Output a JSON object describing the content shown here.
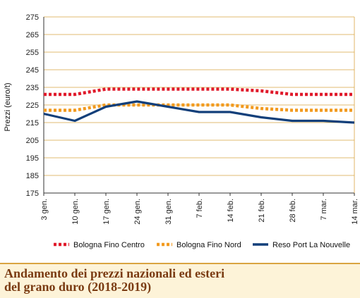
{
  "chart_data": {
    "type": "line",
    "categories": [
      "3 gen.",
      "10 gen.",
      "17 gen.",
      "24 gen.",
      "31 gen.",
      "7 feb.",
      "14 feb.",
      "21 feb.",
      "28 feb.",
      "7 mar.",
      "14 mar."
    ],
    "ylabel": "Prezzi (euro/t)",
    "ylim": [
      175,
      275
    ],
    "yticks": [
      175,
      185,
      195,
      205,
      215,
      225,
      235,
      245,
      255,
      265,
      275
    ],
    "grid": "horizontal",
    "legend_position": "bottom",
    "series": [
      {
        "name": "Bologna Fino Centro",
        "color": "#e01a2b",
        "style": "dotted",
        "values": [
          231,
          231,
          234,
          234,
          234,
          234,
          234,
          233,
          231,
          231,
          231
        ]
      },
      {
        "name": "Bologna Fino Nord",
        "color": "#f29a1f",
        "style": "dotted",
        "values": [
          222,
          222,
          225,
          225,
          225,
          225,
          225,
          223,
          222,
          222,
          222
        ]
      },
      {
        "name": "Reso Port La Nouvelle",
        "color": "#123f7a",
        "style": "solid",
        "values": [
          220,
          216,
          224,
          227,
          224,
          221,
          221,
          218,
          216,
          216,
          215
        ]
      }
    ]
  },
  "caption": {
    "line1": "Andamento dei prezzi nazionali ed esteri",
    "line2": "del grano duro (2018-2019)"
  },
  "colors": {
    "grid": "#d9a441",
    "caption_bg": "#fdf3d8",
    "caption_text": "#7a3b12"
  }
}
